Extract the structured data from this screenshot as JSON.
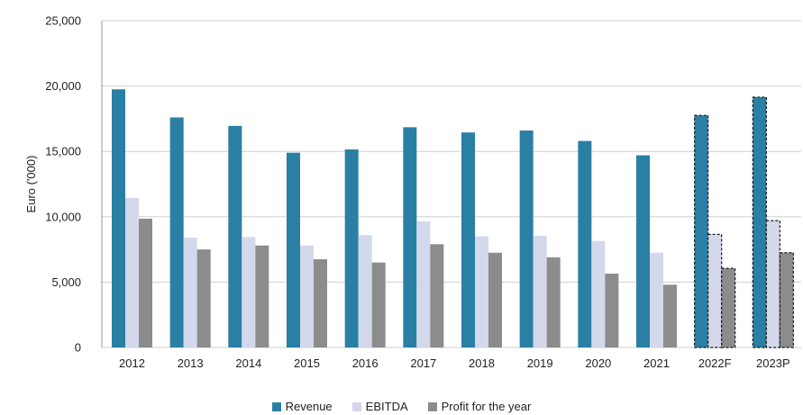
{
  "chart_data": {
    "type": "bar",
    "ylabel": "Euro ('000)",
    "ylim": [
      0,
      25000
    ],
    "yticks": [
      "0",
      "5,000",
      "10,000",
      "15,000",
      "20,000",
      "25,000"
    ],
    "ytick_values": [
      0,
      5000,
      10000,
      15000,
      20000,
      25000
    ],
    "categories": [
      "2012",
      "2013",
      "2014",
      "2015",
      "2016",
      "2017",
      "2018",
      "2019",
      "2020",
      "2021",
      "2022F",
      "2023P"
    ],
    "projected_categories": [
      "2022F",
      "2023P"
    ],
    "grid": "horizontal",
    "legend_position": "bottom",
    "series": [
      {
        "name": "Revenue",
        "color": "#2a7fa4",
        "values": [
          19750,
          17600,
          16950,
          14900,
          15150,
          16850,
          16450,
          16600,
          15800,
          14700,
          17750,
          19150
        ]
      },
      {
        "name": "EBITDA",
        "color": "#d3d8ea",
        "values": [
          11450,
          8400,
          8450,
          7800,
          8600,
          9650,
          8500,
          8550,
          8150,
          7250,
          8650,
          9700
        ]
      },
      {
        "name": "Profit for the year",
        "color": "#8c8c8c",
        "values": [
          9850,
          7500,
          7800,
          6750,
          6500,
          7900,
          7250,
          6900,
          5650,
          4800,
          6050,
          7250
        ]
      }
    ]
  }
}
